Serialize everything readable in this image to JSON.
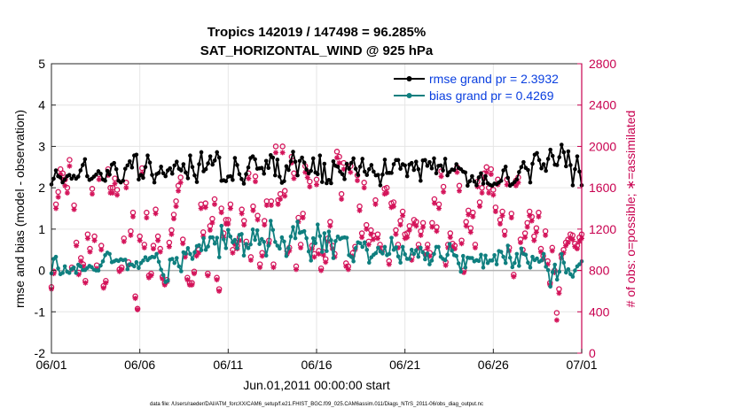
{
  "chart_data": {
    "type": "line",
    "title": "Tropics 142019 / 147498 = 96.285%",
    "subtitle": "SAT_HORIZONTAL_WIND @ 925 hPa",
    "xlabel": "Jun.01,2011 00:00:00 start",
    "ylabel": "rmse and bias (model - observation)",
    "y2label": "# of obs: o=possible; ∗=assimilated",
    "footnote": "data file: /Users/raeder/DAI/ATM_forcXX/CAM6_setup/f.e21.FHIST_BGC.f09_025.CAM6assim.011/Diags_NTrS_2011-06/obs_diag_output.nc",
    "xlim": [
      0,
      30
    ],
    "ylim": [
      -2,
      5
    ],
    "y2lim": [
      0,
      2800
    ],
    "x_tick_labels": [
      "06/01",
      "06/06",
      "06/11",
      "06/16",
      "06/21",
      "06/26",
      "07/01"
    ],
    "y_tick_labels": [
      "-2",
      "-1",
      "0",
      "1",
      "2",
      "3",
      "4",
      "5"
    ],
    "y2_tick_labels": [
      "0",
      "400",
      "800",
      "1200",
      "1600",
      "2000",
      "2400",
      "2800"
    ],
    "legend": {
      "position": "top-right",
      "entries": [
        "rmse grand pr = 2.3932",
        "bias grand pr = 0.4269"
      ]
    },
    "colors": {
      "rmse": "#000000",
      "bias": "#0f7f7f",
      "obs": "#d4145a",
      "zero_line": "#b3b3b3",
      "legend_text": "#0a3fe0",
      "right_axis": "#c8004f"
    },
    "series": [
      {
        "name": "rmse",
        "values": [
          2.08,
          2.22,
          2.42,
          2.28,
          2.25,
          2.13,
          2.2,
          2.28,
          2.31,
          2.22,
          2.29,
          2.22,
          2.27,
          2.42,
          2.55,
          2.69,
          2.28,
          2.19,
          2.22,
          2.27,
          2.32,
          2.4,
          2.34,
          2.2,
          2.17,
          2.41,
          2.32,
          2.56,
          2.6,
          2.45,
          2.17,
          2.13,
          2.17,
          2.46,
          2.54,
          2.64,
          2.49,
          2.78,
          2.8,
          2.2,
          2.31,
          2.24,
          2.5,
          2.78,
          2.61,
          2.31,
          2.13,
          2.33,
          2.36,
          2.51,
          2.35,
          2.28,
          2.42,
          2.47,
          2.34,
          2.54,
          2.63,
          2.46,
          2.42,
          2.57,
          2.37,
          2.23,
          2.78,
          2.5,
          2.3,
          2.14,
          2.57,
          2.86,
          2.4,
          2.45,
          2.59,
          2.76,
          2.56,
          2.66,
          2.86,
          2.73,
          2.17,
          2.18,
          2.16,
          2.27,
          2.28,
          2.19,
          2.72,
          2.55,
          2.33,
          2.21,
          2.1,
          2.33,
          2.49,
          2.72,
          2.76,
          2.69,
          2.46,
          2.47,
          2.48,
          2.34,
          2.65,
          2.48,
          2.79,
          2.73,
          2.3,
          2.68,
          2.27,
          2.12,
          2.16,
          2.52,
          2.43,
          2.64,
          2.87,
          2.63,
          2.3,
          2.65,
          2.73,
          2.61,
          2.44,
          2.35,
          2.41,
          2.71,
          2.37,
          2.33,
          2.78,
          2.14,
          2.58,
          2.11,
          2.19,
          2.11,
          2.64,
          2.53,
          2.51,
          2.39,
          2.33,
          2.21,
          2.58,
          2.46,
          2.6,
          2.71,
          2.46,
          2.31,
          2.51,
          2.7,
          2.39,
          2.31,
          2.45,
          2.55,
          2.39,
          2.3,
          2.31,
          2.06,
          2.32,
          2.68,
          2.36,
          2.36,
          2.36,
          2.57,
          2.67,
          2.67,
          2.46,
          2.57,
          2.54,
          2.28,
          2.56,
          2.6,
          2.43,
          2.63,
          2.45,
          2.17,
          2.66,
          2.67,
          2.53,
          2.62,
          2.47,
          2.71,
          2.35,
          2.53,
          2.54,
          2.42,
          2.7,
          2.3,
          2.38,
          2.44,
          2.43,
          2.57,
          2.48,
          2.45,
          2.39,
          2.37,
          2.05,
          2.16,
          2.28,
          2.15,
          2.06,
          2.25,
          2.35,
          2.1,
          2.28,
          2.11,
          2.07,
          2.05,
          2.1,
          2.09,
          2.13,
          2.17,
          2.42,
          2.51,
          2.24,
          2.05,
          2.09,
          2.14,
          2.2,
          2.38,
          2.5,
          2.62,
          2.48,
          2.43,
          2.13,
          2.58,
          2.8,
          2.84,
          2.67,
          2.47,
          2.57,
          2.41,
          2.7,
          2.92,
          2.77,
          2.56,
          2.55,
          2.74,
          3.04,
          2.86,
          2.52,
          2.88,
          2.55,
          2.06,
          2.45,
          2.76,
          2.39,
          2.06
        ]
      },
      {
        "name": "bias",
        "values": [
          -0.07,
          0.28,
          0.33,
          0.05,
          -0.09,
          -0.06,
          0.1,
          -0.03,
          -0.06,
          0.03,
          0.07,
          -0.06,
          0.14,
          0.1,
          0.01,
          0.01,
          0.06,
          0.11,
          0.08,
          0.02,
          0.0,
          -0.0,
          0.12,
          0.22,
          0.37,
          0.43,
          0.4,
          0.2,
          0.22,
          0.25,
          0.23,
          0.27,
          0.25,
          0.26,
          0.03,
          0.15,
          0.14,
          0.1,
          0.2,
          0.06,
          0.18,
          0.24,
          0.32,
          0.25,
          0.3,
          0.33,
          0.32,
          0.4,
          0.21,
          0.02,
          -0.11,
          -0.28,
          -0.25,
          0.26,
          0.28,
          0.18,
          0.3,
          0.1,
          -0.02,
          0.44,
          0.41,
          0.54,
          0.4,
          0.28,
          0.44,
          0.59,
          0.61,
          0.49,
          0.78,
          0.5,
          0.58,
          0.8,
          0.8,
          0.65,
          0.79,
          0.32,
          1.08,
          0.75,
          0.54,
          0.98,
          0.82,
          0.68,
          0.74,
          0.54,
          0.86,
          0.88,
          0.36,
          0.64,
          0.54,
          0.63,
          0.99,
          0.74,
          0.97,
          0.64,
          0.76,
          0.69,
          0.36,
          0.6,
          1.2,
          0.98,
          0.69,
          0.6,
          0.53,
          0.8,
          0.7,
          0.35,
          0.54,
          0.82,
          1.05,
          0.78,
          1.18,
          0.91,
          0.93,
          0.95,
          0.78,
          0.46,
          0.24,
          0.78,
          0.66,
          1.11,
          0.83,
          0.45,
          0.9,
          0.47,
          0.94,
          0.73,
          0.3,
          0.71,
          0.82,
          0.76,
          0.79,
          0.8,
          0.79,
          0.37,
          0.33,
          0.22,
          0.54,
          0.68,
          0.66,
          0.57,
          0.68,
          0.5,
          0.19,
          0.32,
          0.38,
          0.42,
          0.55,
          0.46,
          0.41,
          0.57,
          0.37,
          0.4,
          0.79,
          0.5,
          0.56,
          0.34,
          0.19,
          0.57,
          0.39,
          0.28,
          0.28,
          0.5,
          0.4,
          0.49,
          0.33,
          0.55,
          0.44,
          0.27,
          0.41,
          0.15,
          0.24,
          0.4,
          0.57,
          0.57,
          0.33,
          0.28,
          0.25,
          0.38,
          0.64,
          0.48,
          0.37,
          0.35,
          0.17,
          -0.03,
          0.35,
          0.07,
          0.31,
          0.3,
          0.3,
          0.22,
          0.25,
          0.23,
          0.38,
          0.07,
          0.36,
          0.18,
          0.24,
          0.24,
          0.37,
          0.15,
          0.47,
          0.45,
          0.33,
          0.18,
          0.6,
          0.31,
          0.08,
          0.18,
          0.4,
          0.11,
          0.53,
          0.4,
          0.38,
          0.19,
          0.07,
          0.33,
          0.25,
          0.29,
          0.21,
          0.24,
          0.4,
          0.09,
          0.01,
          -0.39,
          -0.04,
          0.14,
          -0.22,
          -0.03,
          0.4,
          0.19,
          -0.05,
          0.03,
          -0.09,
          -0.15,
          0.0,
          0.1,
          0.15,
          0.22
        ]
      },
      {
        "name": "obs possible (o)",
        "axis": "right",
        "values": [
          640,
          790,
          1440,
          1560,
          1780,
          1740,
          1680,
          1600,
          1870,
          830,
          1430,
          1070,
          780,
          920,
          860,
          700,
          1150,
          1010,
          1590,
          1130,
          850,
          1730,
          1040,
          650,
          700,
          1780,
          1600,
          1600,
          1690,
          1580,
          810,
          830,
          1110,
          1650,
          880,
          1180,
          1360,
          550,
          430,
          1130,
          1790,
          1050,
          1360,
          750,
          770,
          1040,
          1390,
          1130,
          1010,
          740,
          680,
          710,
          1070,
          1190,
          1340,
          1470,
          1620,
          1700,
          1100,
          960,
          730,
          680,
          680,
          790,
          970,
          1000,
          1440,
          1170,
          1450,
          770,
          1230,
          1300,
          1490,
          730,
          620,
          1400,
          1160,
          1290,
          1290,
          1440,
          1000,
          1080,
          1040,
          1120,
          1390,
          1280,
          1080,
          1740,
          930,
          1420,
          1710,
          1330,
          860,
          970,
          1280,
          1470,
          1090,
          1470,
          860,
          2000,
          1480,
          1540,
          2000,
          1570,
          990,
          1020,
          1900,
          1740,
          840,
          1310,
          1050,
          1350,
          1810,
          1750,
          1660,
          1040,
          960,
          1680,
          990,
          820,
          980,
          910,
          1110,
          1270,
          1040,
          960,
          1950,
          1900,
          1540,
          1840,
          870,
          840,
          1810,
          970,
          1030,
          1720,
          1420,
          1160,
          1650,
          1240,
          1080,
          1190,
          1140,
          1480,
          1150,
          1050,
          1010,
          1590,
          1600,
          890,
          1450,
          1460,
          1190,
          1050,
          1280,
          1370,
          1150,
          1160,
          1230,
          930,
          1290,
          1270,
          1050,
          1180,
          1260,
          980,
          1050,
          970,
          1260,
          1490,
          1220,
          1440,
          1760,
          1610,
          880,
          1050,
          1160,
          1060,
          1040,
          1800,
          1620,
          1090,
          800,
          1270,
          1380,
          1210,
          1360,
          1050,
          1660,
          1460,
          1600,
          1740,
          1800,
          1600,
          1780,
          1580,
          1410,
          1680,
          1290,
          1370,
          1180,
          1680,
          1020,
          1350,
          760,
          1670,
          1700,
          1100,
          1000,
          1160,
          1260,
          1370,
          1320,
          1130,
          1210,
          1360,
          1010,
          940,
          1180,
          890,
          680,
          1020,
          800,
          390,
          620,
          950,
          1000,
          1070,
          1100,
          1150,
          1140,
          1060,
          1040,
          1120,
          1150
        ]
      },
      {
        "name": "obs assimilated (*)",
        "axis": "right",
        "values": [
          620,
          770,
          1400,
          1510,
          1730,
          1680,
          1620,
          1550,
          1810,
          810,
          1390,
          1040,
          760,
          890,
          840,
          680,
          1110,
          980,
          1540,
          1090,
          820,
          1680,
          1000,
          630,
          680,
          1720,
          1550,
          1550,
          1640,
          1530,
          790,
          810,
          1080,
          1600,
          850,
          1140,
          1320,
          530,
          420,
          1090,
          1740,
          1020,
          1310,
          730,
          750,
          1010,
          1350,
          1090,
          980,
          720,
          660,
          690,
          1030,
          1150,
          1300,
          1420,
          1570,
          1650,
          1060,
          930,
          710,
          660,
          660,
          770,
          940,
          970,
          1400,
          1130,
          1410,
          750,
          1190,
          1260,
          1440,
          710,
          600,
          1360,
          1120,
          1250,
          1250,
          1400,
          970,
          1050,
          1010,
          1090,
          1350,
          1240,
          1050,
          1690,
          900,
          1380,
          1660,
          1290,
          830,
          940,
          1240,
          1430,
          1060,
          1430,
          830,
          1940,
          1440,
          1490,
          1940,
          1520,
          960,
          990,
          1840,
          1690,
          810,
          1270,
          1020,
          1310,
          1750,
          1700,
          1610,
          1010,
          930,
          1630,
          960,
          800,
          950,
          880,
          1080,
          1230,
          1010,
          930,
          1890,
          1840,
          1490,
          1780,
          840,
          810,
          1750,
          940,
          1000,
          1670,
          1380,
          1120,
          1600,
          1200,
          1050,
          1150,
          1100,
          1440,
          1110,
          1020,
          980,
          1540,
          1550,
          860,
          1410,
          1420,
          1150,
          1020,
          1240,
          1330,
          1110,
          1120,
          1190,
          900,
          1250,
          1230,
          1020,
          1140,
          1220,
          950,
          1020,
          940,
          1220,
          1450,
          1180,
          1400,
          1710,
          1560,
          850,
          1020,
          1120,
          1030,
          1010,
          1750,
          1570,
          1060,
          780,
          1230,
          1340,
          1170,
          1320,
          1020,
          1610,
          1420,
          1550,
          1690,
          1750,
          1550,
          1730,
          1530,
          1370,
          1630,
          1250,
          1330,
          1140,
          1630,
          990,
          1310,
          740,
          1620,
          1650,
          1070,
          970,
          1120,
          1220,
          1330,
          1280,
          1090,
          1170,
          1320,
          980,
          910,
          1140,
          860,
          660,
          990,
          780,
          320,
          580,
          920,
          970,
          1040,
          1070,
          1110,
          1100,
          1030,
          1010,
          1080,
          1110
        ]
      }
    ]
  }
}
